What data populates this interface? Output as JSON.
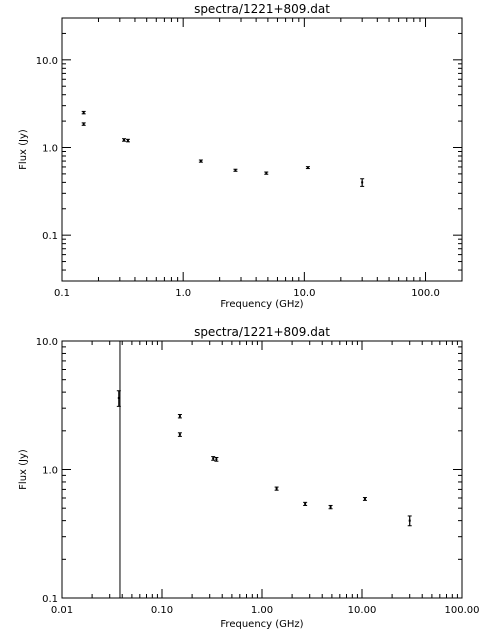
{
  "chart_data": [
    {
      "type": "scatter",
      "title": "spectra/1221+809.dat",
      "xlabel": "Frequency (GHz)",
      "ylabel": "Flux (Jy)",
      "xscale": "log",
      "yscale": "log",
      "xlim": [
        0.1,
        200
      ],
      "ylim": [
        0.03,
        30
      ],
      "xticks": [
        {
          "value": 0.1,
          "label": "0.1"
        },
        {
          "value": 1,
          "label": "1.0"
        },
        {
          "value": 10,
          "label": "10.0"
        },
        {
          "value": 100,
          "label": "100.0"
        }
      ],
      "yticks": [
        {
          "value": 0.1,
          "label": "0.1"
        },
        {
          "value": 1,
          "label": "1.0"
        },
        {
          "value": 10,
          "label": "10.0"
        }
      ],
      "points": [
        {
          "x": 0.151,
          "y": 2.5,
          "err": 0.08
        },
        {
          "x": 0.151,
          "y": 1.85,
          "err": 0.06
        },
        {
          "x": 0.325,
          "y": 1.22,
          "err": 0.04
        },
        {
          "x": 0.35,
          "y": 1.2,
          "err": 0.04
        },
        {
          "x": 1.4,
          "y": 0.7,
          "err": 0.02
        },
        {
          "x": 2.7,
          "y": 0.55,
          "err": 0.015
        },
        {
          "x": 4.85,
          "y": 0.51,
          "err": 0.015
        },
        {
          "x": 10.7,
          "y": 0.59,
          "err": 0.015
        },
        {
          "x": 30,
          "y": 0.4,
          "err": 0.04
        }
      ],
      "vlines": []
    },
    {
      "type": "scatter",
      "title": "spectra/1221+809.dat",
      "xlabel": "Frequency (GHz)",
      "ylabel": "Flux (Jy)",
      "xscale": "log",
      "yscale": "log",
      "xlim": [
        0.01,
        100
      ],
      "ylim": [
        0.1,
        10
      ],
      "xticks": [
        {
          "value": 0.01,
          "label": "0.01"
        },
        {
          "value": 0.1,
          "label": "0.10"
        },
        {
          "value": 1,
          "label": "1.00"
        },
        {
          "value": 10,
          "label": "10.00"
        },
        {
          "value": 100,
          "label": "100.00"
        }
      ],
      "yticks": [
        {
          "value": 0.1,
          "label": "0.1"
        },
        {
          "value": 1,
          "label": "1.0"
        },
        {
          "value": 10,
          "label": "10.0"
        }
      ],
      "points": [
        {
          "x": 0.037,
          "y": 3.6,
          "err": 0.5
        },
        {
          "x": 0.151,
          "y": 2.6,
          "err": 0.08
        },
        {
          "x": 0.151,
          "y": 1.87,
          "err": 0.06
        },
        {
          "x": 0.325,
          "y": 1.22,
          "err": 0.04
        },
        {
          "x": 0.35,
          "y": 1.2,
          "err": 0.04
        },
        {
          "x": 1.4,
          "y": 0.71,
          "err": 0.02
        },
        {
          "x": 2.7,
          "y": 0.54,
          "err": 0.015
        },
        {
          "x": 4.85,
          "y": 0.51,
          "err": 0.015
        },
        {
          "x": 10.7,
          "y": 0.59,
          "err": 0.015
        },
        {
          "x": 30,
          "y": 0.4,
          "err": 0.035
        }
      ],
      "vlines": [
        0.038
      ]
    }
  ]
}
